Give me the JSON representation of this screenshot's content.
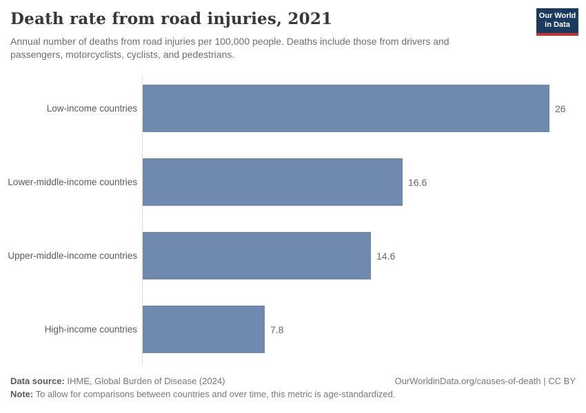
{
  "header": {
    "title": "Death rate from road injuries, 2021",
    "subtitle": "Annual number of deaths from road injuries per 100,000 people. Deaths include those from drivers and passengers, motorcyclists, cyclists, and pedestrians.",
    "logo": {
      "line1": "Our World",
      "line2": "in Data"
    }
  },
  "chart_data": {
    "type": "bar",
    "orientation": "horizontal",
    "title": "Death rate from road injuries, 2021",
    "categories": [
      "Low-income countries",
      "Lower-middle-income countries",
      "Upper-middle-income countries",
      "High-income countries"
    ],
    "values": [
      26,
      16.6,
      14.6,
      7.8
    ],
    "value_labels": [
      "26",
      "16.6",
      "14.6",
      "7.8"
    ],
    "xlim": [
      0,
      26
    ],
    "grid": false,
    "legend": "none",
    "bar_color": "#6f89ae"
  },
  "footer": {
    "datasource_label": "Data source:",
    "datasource_value": " IHME, Global Burden of Disease (2024)",
    "note_label": "Note:",
    "note_value": " To allow for comparisons between countries and over time, this metric is age-standardized.",
    "credit": "OurWorldinData.org/causes-of-death | CC BY"
  },
  "colors": {
    "bar": "#6f89ae",
    "logo_background": "#1a3a60",
    "logo_accent_red": "#c0362c",
    "axis_line": "#dadada",
    "title_text": "#383838",
    "body_text": "#5b5b5b"
  }
}
